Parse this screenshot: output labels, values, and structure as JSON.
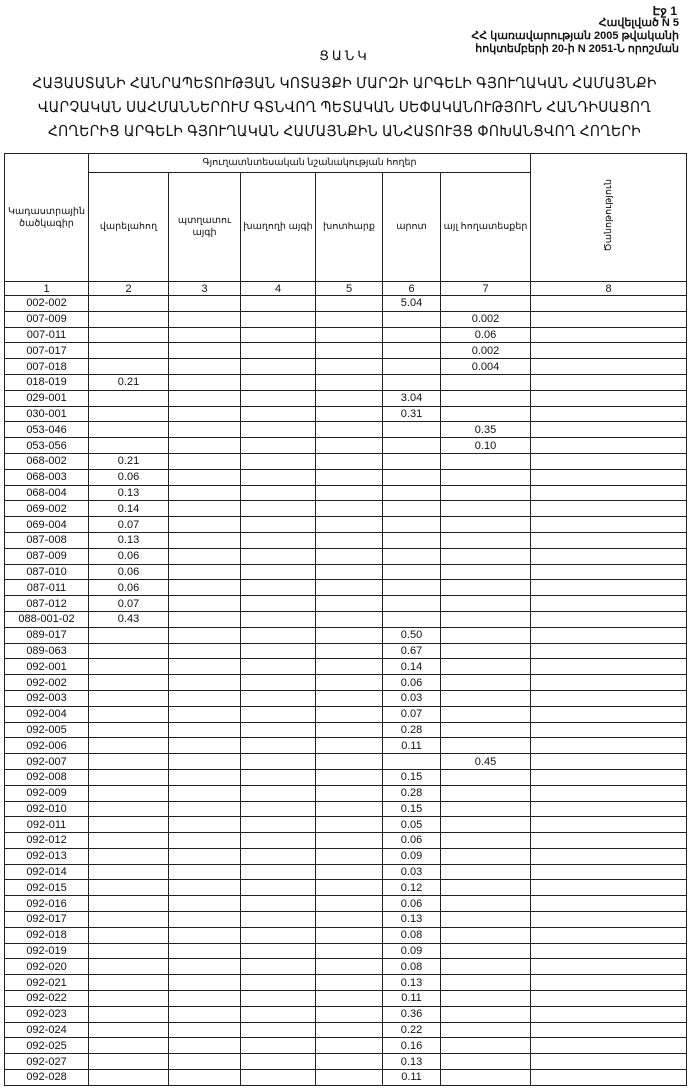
{
  "header": {
    "page": "Էջ 1",
    "annex_lines": [
      "Հավելված N 5",
      "ՀՀ կառավարության 2005 թվականի",
      "հոկտեմբերի 20-ի N 2051-Ն որոշման"
    ],
    "list_label": "ՑԱՆԿ",
    "title_lines": [
      "ՀԱՅԱՍՏԱՆԻ ՀԱՆՐԱՊԵՏՈՒԹՅԱՆ ԿՈՏԱՅՔԻ ՄԱՐԶԻ ԱՐԳԵԼԻ ԳՅՈՒՂԱԿԱՆ ՀԱՄԱՅՆՔԻ",
      "ՎԱՐՉԱԿԱՆ ՍԱՀՄԱՆՆԵՐՈՒՄ ԳՏՆՎՈՂ ՊԵՏԱԿԱՆ ՍԵՓԱԿԱՆՈՒԹՅՈՒՆ ՀԱՆԴԻՍԱՑՈՂ",
      "ՀՈՂԵՐԻՑ ԱՐԳԵԼԻ ԳՅՈՒՂԱԿԱՆ ՀԱՄԱՅՆՔԻՆ ԱՆՀԱՏՈՒՅՑ ՓՈԽԱՆՑՎՈՂ ՀՈՂԵՐԻ"
    ]
  },
  "table": {
    "group_header": "Գյուղատնտեսական նշանակության հողեր",
    "columns": [
      "Կադաստրային ծածկագիր",
      "վարելահող",
      "պտղատու այգի",
      "խաղողի այգի",
      "խոտհարք",
      "արոտ",
      "այլ հողատեսքեր",
      "Ծանոթություն"
    ],
    "column_numbers": [
      "1",
      "2",
      "3",
      "4",
      "5",
      "6",
      "7",
      "8"
    ],
    "rows": [
      [
        "002-002",
        "",
        "",
        "",
        "",
        "5.04",
        "",
        ""
      ],
      [
        "007-009",
        "",
        "",
        "",
        "",
        "",
        "0.002",
        ""
      ],
      [
        "007-011",
        "",
        "",
        "",
        "",
        "",
        "0.06",
        ""
      ],
      [
        "007-017",
        "",
        "",
        "",
        "",
        "",
        "0.002",
        ""
      ],
      [
        "007-018",
        "",
        "",
        "",
        "",
        "",
        "0.004",
        ""
      ],
      [
        "018-019",
        "0.21",
        "",
        "",
        "",
        "",
        "",
        ""
      ],
      [
        "029-001",
        "",
        "",
        "",
        "",
        "3.04",
        "",
        ""
      ],
      [
        "030-001",
        "",
        "",
        "",
        "",
        "0.31",
        "",
        ""
      ],
      [
        "053-046",
        "",
        "",
        "",
        "",
        "",
        "0.35",
        ""
      ],
      [
        "053-056",
        "",
        "",
        "",
        "",
        "",
        "0.10",
        ""
      ],
      [
        "068-002",
        "0.21",
        "",
        "",
        "",
        "",
        "",
        ""
      ],
      [
        "068-003",
        "0.06",
        "",
        "",
        "",
        "",
        "",
        ""
      ],
      [
        "068-004",
        "0.13",
        "",
        "",
        "",
        "",
        "",
        ""
      ],
      [
        "069-002",
        "0.14",
        "",
        "",
        "",
        "",
        "",
        ""
      ],
      [
        "069-004",
        "0.07",
        "",
        "",
        "",
        "",
        "",
        ""
      ],
      [
        "087-008",
        "0.13",
        "",
        "",
        "",
        "",
        "",
        ""
      ],
      [
        "087-009",
        "0.06",
        "",
        "",
        "",
        "",
        "",
        ""
      ],
      [
        "087-010",
        "0.06",
        "",
        "",
        "",
        "",
        "",
        ""
      ],
      [
        "087-011",
        "0.06",
        "",
        "",
        "",
        "",
        "",
        ""
      ],
      [
        "087-012",
        "0.07",
        "",
        "",
        "",
        "",
        "",
        ""
      ],
      [
        "088-001-02",
        "0.43",
        "",
        "",
        "",
        "",
        "",
        ""
      ],
      [
        "089-017",
        "",
        "",
        "",
        "",
        "0.50",
        "",
        ""
      ],
      [
        "089-063",
        "",
        "",
        "",
        "",
        "0.67",
        "",
        ""
      ],
      [
        "092-001",
        "",
        "",
        "",
        "",
        "0.14",
        "",
        ""
      ],
      [
        "092-002",
        "",
        "",
        "",
        "",
        "0.06",
        "",
        ""
      ],
      [
        "092-003",
        "",
        "",
        "",
        "",
        "0.03",
        "",
        ""
      ],
      [
        "092-004",
        "",
        "",
        "",
        "",
        "0.07",
        "",
        ""
      ],
      [
        "092-005",
        "",
        "",
        "",
        "",
        "0.28",
        "",
        ""
      ],
      [
        "092-006",
        "",
        "",
        "",
        "",
        "0.11",
        "",
        ""
      ],
      [
        "092-007",
        "",
        "",
        "",
        "",
        "",
        "0.45",
        ""
      ],
      [
        "092-008",
        "",
        "",
        "",
        "",
        "0.15",
        "",
        ""
      ],
      [
        "092-009",
        "",
        "",
        "",
        "",
        "0.28",
        "",
        ""
      ],
      [
        "092-010",
        "",
        "",
        "",
        "",
        "0.15",
        "",
        ""
      ],
      [
        "092-011",
        "",
        "",
        "",
        "",
        "0.05",
        "",
        ""
      ],
      [
        "092-012",
        "",
        "",
        "",
        "",
        "0.06",
        "",
        ""
      ],
      [
        "092-013",
        "",
        "",
        "",
        "",
        "0.09",
        "",
        ""
      ],
      [
        "092-014",
        "",
        "",
        "",
        "",
        "0.03",
        "",
        ""
      ],
      [
        "092-015",
        "",
        "",
        "",
        "",
        "0.12",
        "",
        ""
      ],
      [
        "092-016",
        "",
        "",
        "",
        "",
        "0.06",
        "",
        ""
      ],
      [
        "092-017",
        "",
        "",
        "",
        "",
        "0.13",
        "",
        ""
      ],
      [
        "092-018",
        "",
        "",
        "",
        "",
        "0.08",
        "",
        ""
      ],
      [
        "092-019",
        "",
        "",
        "",
        "",
        "0.09",
        "",
        ""
      ],
      [
        "092-020",
        "",
        "",
        "",
        "",
        "0.08",
        "",
        ""
      ],
      [
        "092-021",
        "",
        "",
        "",
        "",
        "0.13",
        "",
        ""
      ],
      [
        "092-022",
        "",
        "",
        "",
        "",
        "0.11",
        "",
        ""
      ],
      [
        "092-023",
        "",
        "",
        "",
        "",
        "0.36",
        "",
        ""
      ],
      [
        "092-024",
        "",
        "",
        "",
        "",
        "0.22",
        "",
        ""
      ],
      [
        "092-025",
        "",
        "",
        "",
        "",
        "0.16",
        "",
        ""
      ],
      [
        "092-027",
        "",
        "",
        "",
        "",
        "0.13",
        "",
        ""
      ],
      [
        "092-028",
        "",
        "",
        "",
        "",
        "0.11",
        "",
        ""
      ]
    ]
  }
}
